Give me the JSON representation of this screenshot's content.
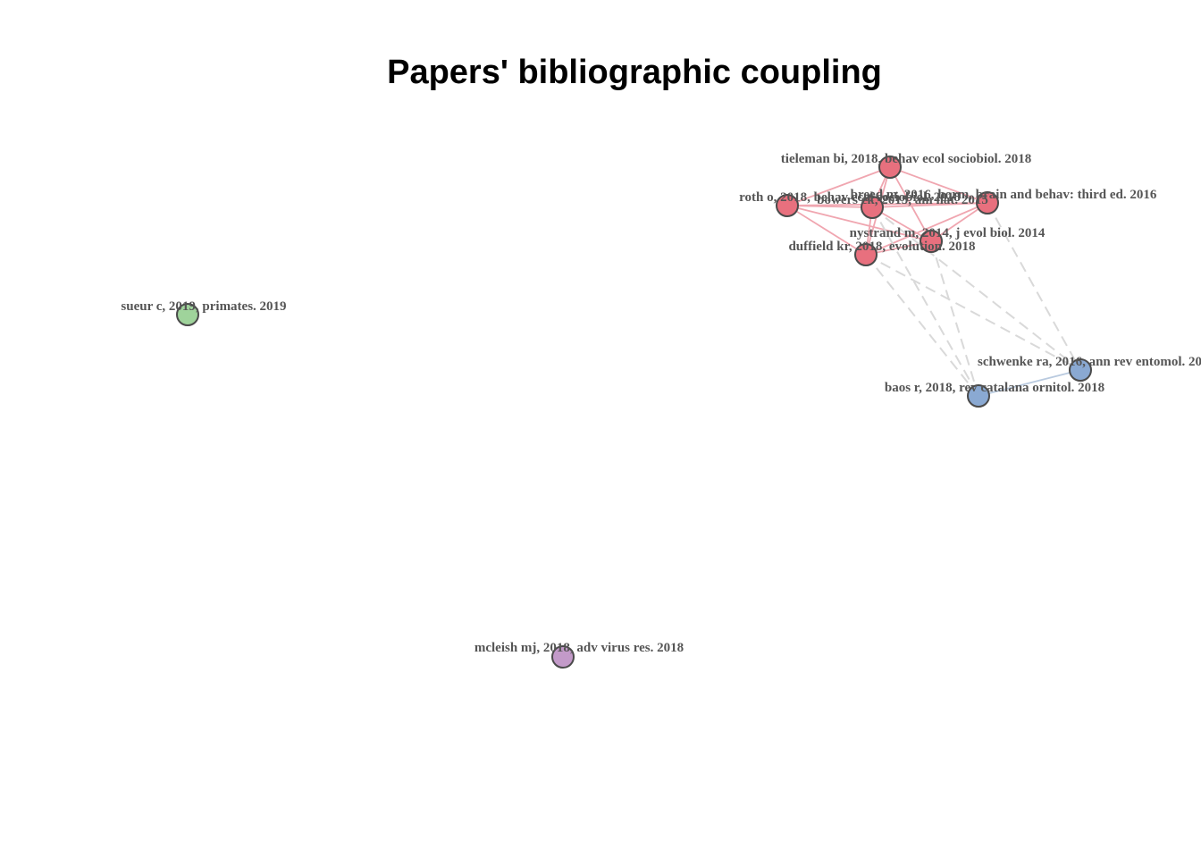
{
  "title": "Papers' bibliographic coupling",
  "colors": {
    "cluster_red": "#e8707e",
    "cluster_blue": "#8aa9d2",
    "cluster_green": "#9fd39b",
    "cluster_purple": "#c39ac9",
    "edge_red": "#f0a6b0",
    "edge_blue": "#b9cadf",
    "edge_inter": "#d9d9d9",
    "label": "#555555"
  },
  "nodes": [
    {
      "id": "tieleman",
      "label": "tieleman bi, 2018, behav ecol sociobiol. 2018",
      "cluster": "red"
    },
    {
      "id": "roth",
      "label": "roth o, 2018, behav ecol sociobiol. 2018",
      "cluster": "red"
    },
    {
      "id": "bowers",
      "label": "bowers ek, 2015, am nat. 2015",
      "cluster": "red"
    },
    {
      "id": "breed",
      "label": "breed m, 2016, horm, brain and behav: third ed. 2016",
      "cluster": "red"
    },
    {
      "id": "nystrand",
      "label": "nystrand m, 2014, j evol biol. 2014",
      "cluster": "red"
    },
    {
      "id": "duffield",
      "label": "duffield kr, 2018, evolution. 2018",
      "cluster": "red"
    },
    {
      "id": "schwenke",
      "label": "schwenke ra, 2016, ann rev entomol. 2016",
      "cluster": "blue"
    },
    {
      "id": "baos",
      "label": "baos r, 2018, rev catalana ornitol. 2018",
      "cluster": "blue"
    },
    {
      "id": "sueur",
      "label": "sueur c, 2019, primates. 2019",
      "cluster": "green"
    },
    {
      "id": "mcleish",
      "label": "mcleish mj, 2018, adv virus res. 2018",
      "cluster": "purple"
    }
  ],
  "edges": [
    {
      "source": "roth",
      "target": "tieleman",
      "kind": "intra"
    },
    {
      "source": "roth",
      "target": "bowers",
      "kind": "intra"
    },
    {
      "source": "roth",
      "target": "breed",
      "kind": "intra"
    },
    {
      "source": "roth",
      "target": "nystrand",
      "kind": "intra"
    },
    {
      "source": "roth",
      "target": "duffield",
      "kind": "intra"
    },
    {
      "source": "tieleman",
      "target": "bowers",
      "kind": "intra"
    },
    {
      "source": "tieleman",
      "target": "breed",
      "kind": "intra"
    },
    {
      "source": "tieleman",
      "target": "nystrand",
      "kind": "intra"
    },
    {
      "source": "tieleman",
      "target": "duffield",
      "kind": "intra"
    },
    {
      "source": "bowers",
      "target": "breed",
      "kind": "intra"
    },
    {
      "source": "bowers",
      "target": "nystrand",
      "kind": "intra"
    },
    {
      "source": "bowers",
      "target": "duffield",
      "kind": "intra"
    },
    {
      "source": "breed",
      "target": "nystrand",
      "kind": "intra"
    },
    {
      "source": "breed",
      "target": "duffield",
      "kind": "intra"
    },
    {
      "source": "nystrand",
      "target": "duffield",
      "kind": "intra"
    },
    {
      "source": "baos",
      "target": "schwenke",
      "kind": "intra"
    },
    {
      "source": "duffield",
      "target": "baos",
      "kind": "inter"
    },
    {
      "source": "duffield",
      "target": "schwenke",
      "kind": "inter"
    },
    {
      "source": "bowers",
      "target": "baos",
      "kind": "inter"
    },
    {
      "source": "bowers",
      "target": "schwenke",
      "kind": "inter"
    },
    {
      "source": "nystrand",
      "target": "baos",
      "kind": "inter"
    },
    {
      "source": "breed",
      "target": "schwenke",
      "kind": "inter"
    }
  ]
}
